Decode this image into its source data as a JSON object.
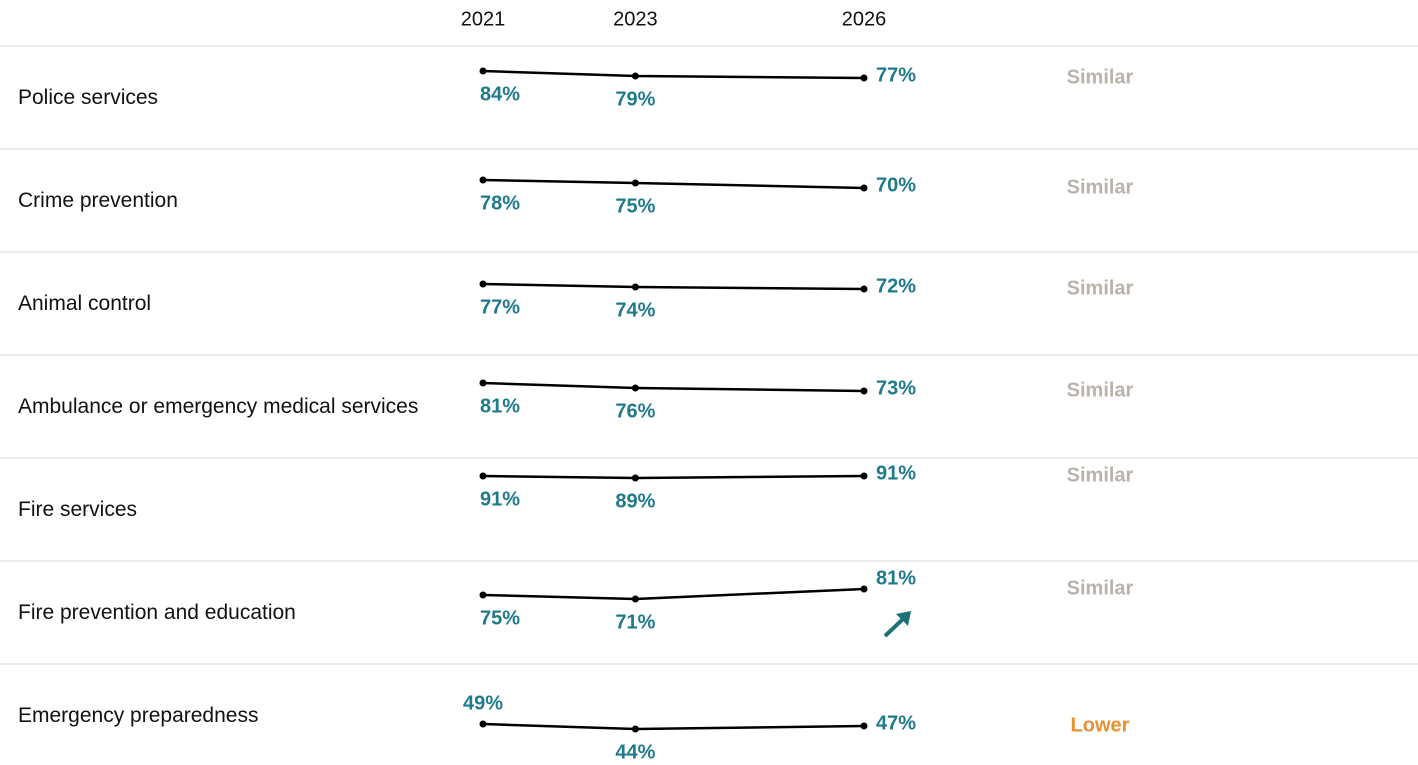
{
  "chart_data": {
    "type": "line",
    "x": [
      2021,
      2023,
      2026
    ],
    "line_color": "#000000",
    "label_color": "#1f7a8c",
    "series": [
      {
        "name": "Police services",
        "values": [
          84,
          79,
          77
        ],
        "value_labels": [
          "84%",
          "79%",
          "77%"
        ],
        "comparison": "Similar",
        "comparison_color": "#bab3ac"
      },
      {
        "name": "Crime prevention",
        "values": [
          78,
          75,
          70
        ],
        "value_labels": [
          "78%",
          "75%",
          "70%"
        ],
        "comparison": "Similar",
        "comparison_color": "#bab3ac"
      },
      {
        "name": "Animal control",
        "values": [
          77,
          74,
          72
        ],
        "value_labels": [
          "77%",
          "74%",
          "72%"
        ],
        "comparison": "Similar",
        "comparison_color": "#bab3ac"
      },
      {
        "name": "Ambulance or emergency medical services",
        "values": [
          81,
          76,
          73
        ],
        "value_labels": [
          "81%",
          "76%",
          "73%"
        ],
        "comparison": "Similar",
        "comparison_color": "#bab3ac"
      },
      {
        "name": "Fire services",
        "values": [
          91,
          89,
          91
        ],
        "value_labels": [
          "91%",
          "89%",
          "91%"
        ],
        "comparison": "Similar",
        "comparison_color": "#bab3ac"
      },
      {
        "name": "Fire prevention and education",
        "values": [
          75,
          71,
          81
        ],
        "value_labels": [
          "75%",
          "71%",
          "81%"
        ],
        "comparison": "Similar",
        "comparison_color": "#bab3ac"
      },
      {
        "name": "Emergency preparedness",
        "values": [
          49,
          44,
          47
        ],
        "value_labels": [
          "49%",
          "44%",
          "47%"
        ],
        "comparison": "Lower",
        "comparison_color": "#e8902e"
      }
    ]
  }
}
